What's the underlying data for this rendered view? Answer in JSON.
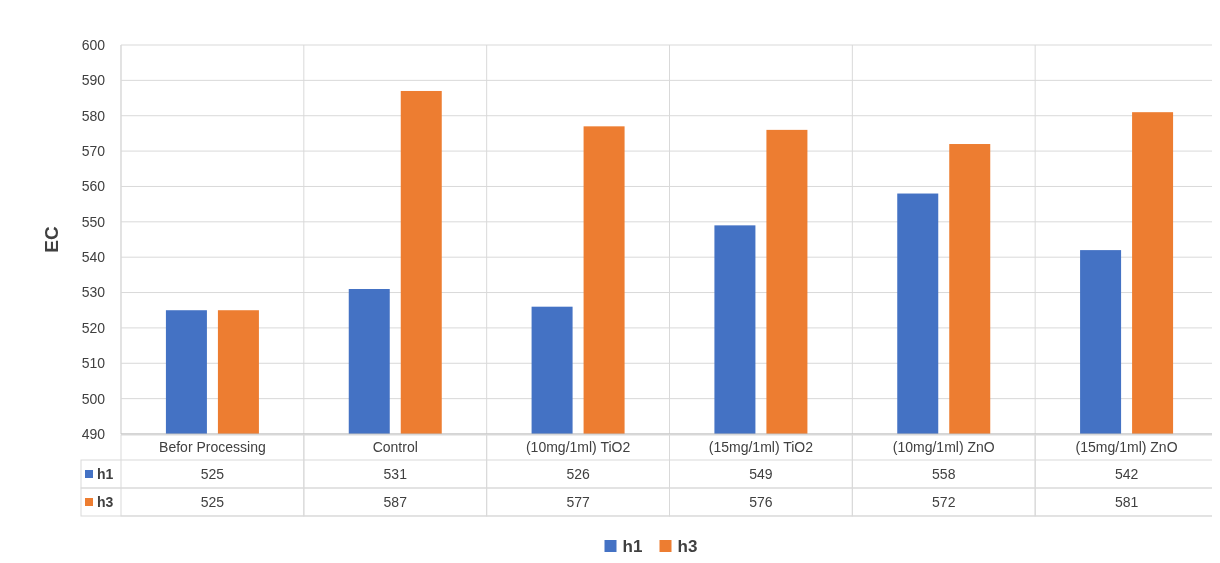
{
  "chart_data": {
    "type": "bar",
    "ylabel": "EC",
    "categories": [
      "Befor Processing",
      "Control",
      "(10mg/1ml) TiO2",
      "(15mg/1ml) TiO2",
      "(10mg/1ml) ZnO",
      "(15mg/1ml) ZnO"
    ],
    "series": [
      {
        "name": "h1",
        "color": "#4472c4",
        "values": [
          525,
          531,
          526,
          549,
          558,
          542
        ]
      },
      {
        "name": "h3",
        "color": "#ed7d31",
        "values": [
          525,
          587,
          577,
          576,
          572,
          581
        ]
      }
    ],
    "ylim": [
      490,
      600
    ],
    "yticks": [
      490,
      500,
      510,
      520,
      530,
      540,
      550,
      560,
      570,
      580,
      590,
      600
    ],
    "grid": true,
    "data_labels": true,
    "legend": "bottom"
  }
}
